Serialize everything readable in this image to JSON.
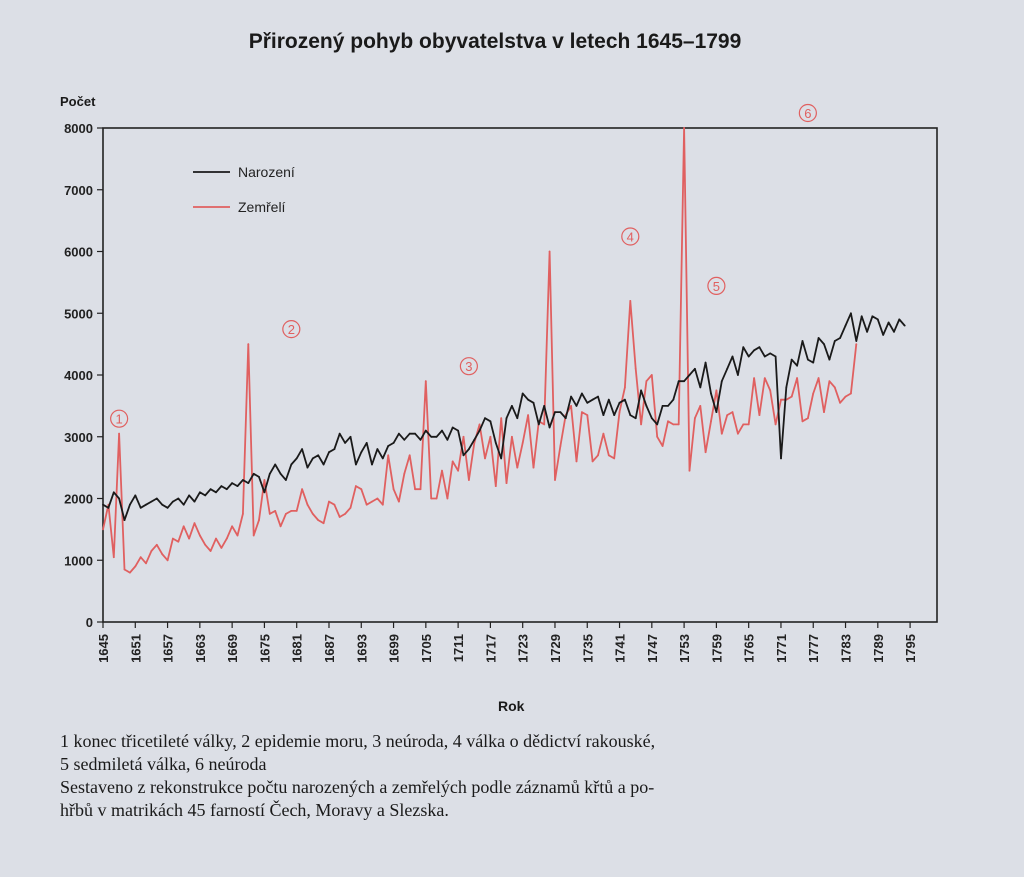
{
  "chart_data": {
    "type": "line",
    "title": "Přirozený pohyb obyvatelstva v letech 1645–1799",
    "ylabel": "Počet",
    "xlabel": "Rok",
    "ylim": [
      0,
      8000
    ],
    "yticks": [
      0,
      1000,
      2000,
      3000,
      4000,
      5000,
      6000,
      7000,
      8000
    ],
    "xlim": [
      1645,
      1800
    ],
    "xticks": [
      1645,
      1651,
      1657,
      1663,
      1669,
      1675,
      1681,
      1687,
      1693,
      1699,
      1705,
      1711,
      1717,
      1723,
      1729,
      1735,
      1741,
      1747,
      1753,
      1759,
      1765,
      1771,
      1777,
      1783,
      1789,
      1795
    ],
    "series": [
      {
        "name": "Narození",
        "color": "#1a1a1a",
        "points": [
          [
            1645,
            1900
          ],
          [
            1646,
            1850
          ],
          [
            1647,
            2100
          ],
          [
            1648,
            2000
          ],
          [
            1649,
            1650
          ],
          [
            1650,
            1900
          ],
          [
            1651,
            2050
          ],
          [
            1652,
            1850
          ],
          [
            1653,
            1900
          ],
          [
            1654,
            1950
          ],
          [
            1655,
            2000
          ],
          [
            1656,
            1900
          ],
          [
            1657,
            1850
          ],
          [
            1658,
            1950
          ],
          [
            1659,
            2000
          ],
          [
            1660,
            1900
          ],
          [
            1661,
            2050
          ],
          [
            1662,
            1950
          ],
          [
            1663,
            2100
          ],
          [
            1664,
            2050
          ],
          [
            1665,
            2150
          ],
          [
            1666,
            2100
          ],
          [
            1667,
            2200
          ],
          [
            1668,
            2150
          ],
          [
            1669,
            2250
          ],
          [
            1670,
            2200
          ],
          [
            1671,
            2300
          ],
          [
            1672,
            2250
          ],
          [
            1673,
            2400
          ],
          [
            1674,
            2350
          ],
          [
            1675,
            2100
          ],
          [
            1676,
            2400
          ],
          [
            1677,
            2550
          ],
          [
            1678,
            2400
          ],
          [
            1679,
            2300
          ],
          [
            1680,
            2550
          ],
          [
            1681,
            2650
          ],
          [
            1682,
            2800
          ],
          [
            1683,
            2500
          ],
          [
            1684,
            2650
          ],
          [
            1685,
            2700
          ],
          [
            1686,
            2550
          ],
          [
            1687,
            2750
          ],
          [
            1688,
            2800
          ],
          [
            1689,
            3050
          ],
          [
            1690,
            2900
          ],
          [
            1691,
            3000
          ],
          [
            1692,
            2550
          ],
          [
            1693,
            2750
          ],
          [
            1694,
            2900
          ],
          [
            1695,
            2550
          ],
          [
            1696,
            2800
          ],
          [
            1697,
            2650
          ],
          [
            1698,
            2850
          ],
          [
            1699,
            2900
          ],
          [
            1700,
            3050
          ],
          [
            1701,
            2950
          ],
          [
            1702,
            3050
          ],
          [
            1703,
            3050
          ],
          [
            1704,
            2950
          ],
          [
            1705,
            3100
          ],
          [
            1706,
            3000
          ],
          [
            1707,
            3000
          ],
          [
            1708,
            3100
          ],
          [
            1709,
            2950
          ],
          [
            1710,
            3150
          ],
          [
            1711,
            3100
          ],
          [
            1712,
            2700
          ],
          [
            1713,
            2800
          ],
          [
            1714,
            2950
          ],
          [
            1715,
            3100
          ],
          [
            1716,
            3300
          ],
          [
            1717,
            3250
          ],
          [
            1718,
            2900
          ],
          [
            1719,
            2650
          ],
          [
            1720,
            3300
          ],
          [
            1721,
            3500
          ],
          [
            1722,
            3300
          ],
          [
            1723,
            3700
          ],
          [
            1724,
            3600
          ],
          [
            1725,
            3550
          ],
          [
            1726,
            3200
          ],
          [
            1727,
            3500
          ],
          [
            1728,
            3150
          ],
          [
            1729,
            3400
          ],
          [
            1730,
            3400
          ],
          [
            1731,
            3300
          ],
          [
            1732,
            3650
          ],
          [
            1733,
            3500
          ],
          [
            1734,
            3700
          ],
          [
            1735,
            3550
          ],
          [
            1736,
            3600
          ],
          [
            1737,
            3650
          ],
          [
            1738,
            3350
          ],
          [
            1739,
            3600
          ],
          [
            1740,
            3350
          ],
          [
            1741,
            3550
          ],
          [
            1742,
            3600
          ],
          [
            1743,
            3350
          ],
          [
            1744,
            3300
          ],
          [
            1745,
            3750
          ],
          [
            1746,
            3500
          ],
          [
            1747,
            3300
          ],
          [
            1748,
            3200
          ],
          [
            1749,
            3500
          ],
          [
            1750,
            3500
          ],
          [
            1751,
            3600
          ],
          [
            1752,
            3900
          ],
          [
            1753,
            3900
          ],
          [
            1754,
            4000
          ],
          [
            1755,
            4100
          ],
          [
            1756,
            3800
          ],
          [
            1757,
            4200
          ],
          [
            1758,
            3700
          ],
          [
            1759,
            3400
          ],
          [
            1760,
            3900
          ],
          [
            1761,
            4100
          ],
          [
            1762,
            4300
          ],
          [
            1763,
            4000
          ],
          [
            1764,
            4450
          ],
          [
            1765,
            4300
          ],
          [
            1766,
            4400
          ],
          [
            1767,
            4450
          ],
          [
            1768,
            4300
          ],
          [
            1769,
            4350
          ],
          [
            1770,
            4300
          ],
          [
            1771,
            2650
          ],
          [
            1772,
            3800
          ],
          [
            1773,
            4250
          ],
          [
            1774,
            4150
          ],
          [
            1775,
            4550
          ],
          [
            1776,
            4250
          ],
          [
            1777,
            4200
          ],
          [
            1778,
            4600
          ],
          [
            1779,
            4500
          ],
          [
            1780,
            4250
          ],
          [
            1781,
            4550
          ],
          [
            1782,
            4600
          ],
          [
            1783,
            4800
          ],
          [
            1784,
            5000
          ],
          [
            1785,
            4550
          ],
          [
            1786,
            4950
          ],
          [
            1787,
            4700
          ],
          [
            1788,
            4950
          ],
          [
            1789,
            4900
          ],
          [
            1790,
            4650
          ],
          [
            1791,
            4850
          ],
          [
            1792,
            4700
          ],
          [
            1793,
            4900
          ],
          [
            1794,
            4800
          ]
        ]
      },
      {
        "name": "Zemřelí",
        "color": "#e06060",
        "points": [
          [
            1645,
            1500
          ],
          [
            1646,
            1900
          ],
          [
            1647,
            1050
          ],
          [
            1648,
            3050
          ],
          [
            1649,
            850
          ],
          [
            1650,
            800
          ],
          [
            1651,
            900
          ],
          [
            1652,
            1050
          ],
          [
            1653,
            950
          ],
          [
            1654,
            1150
          ],
          [
            1655,
            1250
          ],
          [
            1656,
            1100
          ],
          [
            1657,
            1000
          ],
          [
            1658,
            1350
          ],
          [
            1659,
            1300
          ],
          [
            1660,
            1550
          ],
          [
            1661,
            1350
          ],
          [
            1662,
            1600
          ],
          [
            1663,
            1400
          ],
          [
            1664,
            1250
          ],
          [
            1665,
            1150
          ],
          [
            1666,
            1350
          ],
          [
            1667,
            1200
          ],
          [
            1668,
            1350
          ],
          [
            1669,
            1550
          ],
          [
            1670,
            1400
          ],
          [
            1671,
            1750
          ],
          [
            1672,
            4500
          ],
          [
            1673,
            1400
          ],
          [
            1674,
            1650
          ],
          [
            1675,
            2300
          ],
          [
            1676,
            1750
          ],
          [
            1677,
            1800
          ],
          [
            1678,
            1550
          ],
          [
            1679,
            1750
          ],
          [
            1680,
            1800
          ],
          [
            1681,
            1800
          ],
          [
            1682,
            2150
          ],
          [
            1683,
            1900
          ],
          [
            1684,
            1750
          ],
          [
            1685,
            1650
          ],
          [
            1686,
            1600
          ],
          [
            1687,
            1950
          ],
          [
            1688,
            1900
          ],
          [
            1689,
            1700
          ],
          [
            1690,
            1750
          ],
          [
            1691,
            1850
          ],
          [
            1692,
            2200
          ],
          [
            1693,
            2150
          ],
          [
            1694,
            1900
          ],
          [
            1695,
            1950
          ],
          [
            1696,
            2000
          ],
          [
            1697,
            1900
          ],
          [
            1698,
            2700
          ],
          [
            1699,
            2150
          ],
          [
            1700,
            1950
          ],
          [
            1701,
            2400
          ],
          [
            1702,
            2700
          ],
          [
            1703,
            2150
          ],
          [
            1704,
            2150
          ],
          [
            1705,
            3900
          ],
          [
            1706,
            2000
          ],
          [
            1707,
            2000
          ],
          [
            1708,
            2450
          ],
          [
            1709,
            2000
          ],
          [
            1710,
            2600
          ],
          [
            1711,
            2450
          ],
          [
            1712,
            3000
          ],
          [
            1713,
            2300
          ],
          [
            1714,
            2900
          ],
          [
            1715,
            3200
          ],
          [
            1716,
            2650
          ],
          [
            1717,
            3000
          ],
          [
            1718,
            2200
          ],
          [
            1719,
            3300
          ],
          [
            1720,
            2250
          ],
          [
            1721,
            3000
          ],
          [
            1722,
            2500
          ],
          [
            1723,
            2900
          ],
          [
            1724,
            3350
          ],
          [
            1725,
            2500
          ],
          [
            1726,
            3250
          ],
          [
            1727,
            3200
          ],
          [
            1728,
            6000
          ],
          [
            1729,
            2300
          ],
          [
            1730,
            2850
          ],
          [
            1731,
            3350
          ],
          [
            1732,
            3500
          ],
          [
            1733,
            2600
          ],
          [
            1734,
            3400
          ],
          [
            1735,
            3350
          ],
          [
            1736,
            2600
          ],
          [
            1737,
            2700
          ],
          [
            1738,
            3050
          ],
          [
            1739,
            2700
          ],
          [
            1740,
            2650
          ],
          [
            1741,
            3400
          ],
          [
            1742,
            3800
          ],
          [
            1743,
            5200
          ],
          [
            1744,
            4100
          ],
          [
            1745,
            3200
          ],
          [
            1746,
            3900
          ],
          [
            1747,
            4000
          ],
          [
            1748,
            3000
          ],
          [
            1749,
            2850
          ],
          [
            1750,
            3250
          ],
          [
            1751,
            3200
          ],
          [
            1752,
            3200
          ],
          [
            1753,
            8000
          ],
          [
            1754,
            2450
          ],
          [
            1755,
            3300
          ],
          [
            1756,
            3500
          ],
          [
            1757,
            2750
          ],
          [
            1758,
            3250
          ],
          [
            1759,
            3750
          ],
          [
            1760,
            3050
          ],
          [
            1761,
            3350
          ],
          [
            1762,
            3400
          ],
          [
            1763,
            3050
          ],
          [
            1764,
            3200
          ],
          [
            1765,
            3200
          ],
          [
            1766,
            3950
          ],
          [
            1767,
            3350
          ],
          [
            1768,
            3950
          ],
          [
            1769,
            3750
          ],
          [
            1770,
            3200
          ],
          [
            1771,
            3600
          ],
          [
            1772,
            3600
          ],
          [
            1773,
            3650
          ],
          [
            1774,
            3950
          ],
          [
            1775,
            3250
          ],
          [
            1776,
            3300
          ],
          [
            1777,
            3700
          ],
          [
            1778,
            3950
          ],
          [
            1779,
            3400
          ],
          [
            1780,
            3900
          ],
          [
            1781,
            3800
          ],
          [
            1782,
            3550
          ],
          [
            1783,
            3650
          ],
          [
            1784,
            3700
          ],
          [
            1785,
            4500
          ]
        ]
      }
    ],
    "annotations": [
      {
        "label": "1",
        "x": 1648,
        "y": 3050
      },
      {
        "label": "2",
        "x": 1680,
        "y": 4500
      },
      {
        "label": "3",
        "x": 1713,
        "y": 3900
      },
      {
        "label": "4",
        "x": 1743,
        "y": 6000
      },
      {
        "label": "5",
        "x": 1759,
        "y": 5200
      },
      {
        "label": "6",
        "x": 1776,
        "y": 8000
      }
    ],
    "legend": [
      {
        "name": "Narození",
        "color": "#1a1a1a"
      },
      {
        "name": "Zemřelí",
        "color": "#e06060"
      }
    ],
    "legend_position": "top-left"
  },
  "notes": {
    "line1": "1 konec třicetileté války, 2 epidemie moru, 3 neúroda, 4 válka o dědictví rakouské,",
    "line2": "5 sedmiletá válka, 6 neúroda",
    "line3": "Sestaveno z rekonstrukce počtu narozených a zemřelých podle záznamů křtů a po-",
    "line4": "hřbů v matrikách 45 farností Čech, Moravy a Slezska."
  }
}
